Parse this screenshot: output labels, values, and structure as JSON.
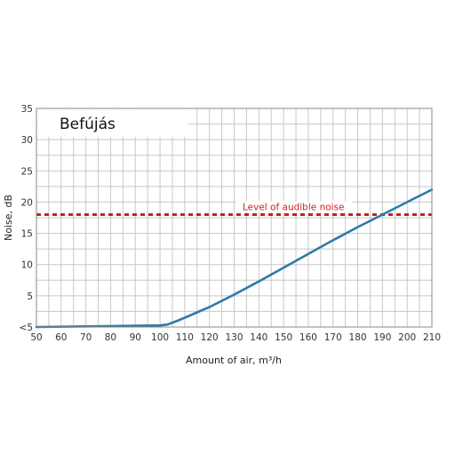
{
  "chart_data": {
    "type": "line",
    "title": "Befújás",
    "xlabel": "Amount of air, m³/h",
    "ylabel": "Noise, dB",
    "xlim": [
      50,
      210
    ],
    "ylim": [
      0,
      35
    ],
    "x_ticks": [
      "50",
      "60",
      "70",
      "80",
      "90",
      "100",
      "110",
      "120",
      "130",
      "140",
      "150",
      "160",
      "170",
      "180",
      "190",
      "200",
      "210"
    ],
    "y_ticks": [
      {
        "value": 0,
        "label": "<5"
      },
      {
        "value": 5,
        "label": "5"
      },
      {
        "value": 10,
        "label": "10"
      },
      {
        "value": 15,
        "label": "15"
      },
      {
        "value": 20,
        "label": "20"
      },
      {
        "value": 25,
        "label": "25"
      },
      {
        "value": 30,
        "label": "30"
      },
      {
        "value": 35,
        "label": "35"
      }
    ],
    "grid": true,
    "series": [
      {
        "color": "#2e7aa8",
        "x": [
          50,
          70,
          90,
          100,
          103,
          107,
          110,
          120,
          130,
          140,
          150,
          160,
          170,
          180,
          190,
          200,
          210
        ],
        "y": [
          0,
          0.1,
          0.2,
          0.25,
          0.4,
          1.0,
          1.5,
          3.2,
          5.2,
          7.3,
          9.5,
          11.7,
          13.9,
          16.0,
          18.0,
          20.0,
          22.0
        ]
      }
    ],
    "reference_line": {
      "y": 18,
      "label": "Level of audible noise",
      "color": "#cc1f1f",
      "style": "dotted"
    }
  }
}
